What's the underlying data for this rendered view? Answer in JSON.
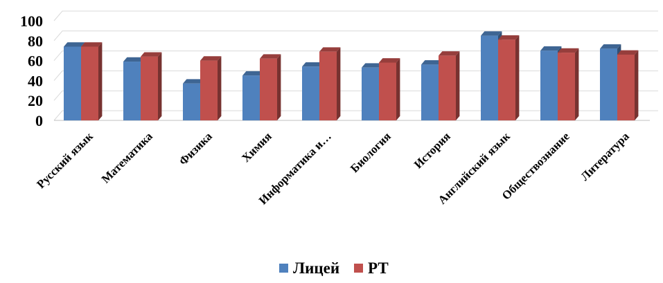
{
  "chart_data": {
    "type": "bar",
    "title": "",
    "xlabel": "",
    "ylabel": "",
    "ylim": [
      0,
      100
    ],
    "yticks": [
      0,
      20,
      40,
      60,
      80,
      100
    ],
    "grid": true,
    "legend_position": "bottom",
    "categories": [
      "Русский язык",
      "Математика",
      "Физика",
      "Химия",
      "Информатика и…",
      "Биология",
      "История",
      "Английский язык",
      "Обществознание",
      "Литература"
    ],
    "series": [
      {
        "name": "Лицей",
        "color": "#4F81BD",
        "values": [
          74,
          59,
          37,
          45,
          54,
          53,
          56,
          85,
          70,
          72
        ]
      },
      {
        "name": "РТ",
        "color": "#C0504D",
        "values": [
          74,
          64,
          60,
          62,
          69,
          58,
          65,
          81,
          68,
          66
        ]
      }
    ]
  }
}
